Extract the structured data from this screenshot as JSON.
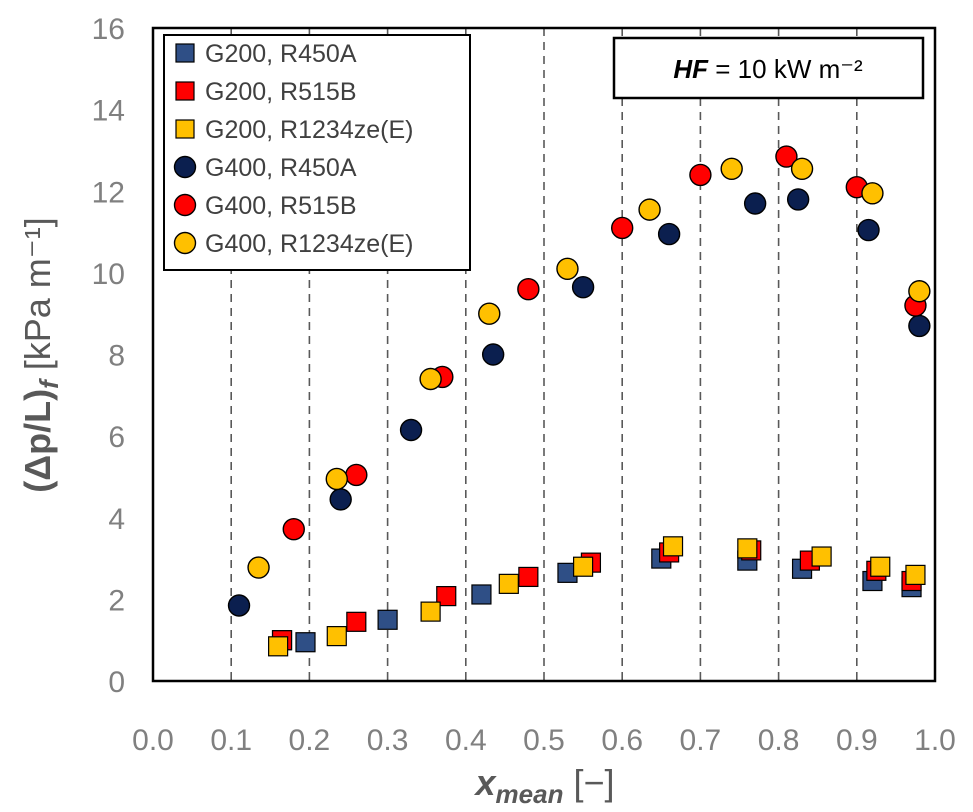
{
  "colors": {
    "R450A": "#2F4F86",
    "R515B": "#FF0000",
    "R1234zeE": "#FFC000",
    "G400_R450A": "#0B1F4F",
    "marker_stroke": "#000000",
    "grid": "#595959",
    "axis_text": "#808080",
    "title_text": "#595959"
  },
  "chart_data": {
    "type": "scatter",
    "xlim": [
      0.0,
      1.0
    ],
    "ylim": [
      0,
      16
    ],
    "xticks": [
      0.0,
      0.1,
      0.2,
      0.3,
      0.4,
      0.5,
      0.6,
      0.7,
      0.8,
      0.9,
      1.0
    ],
    "yticks": [
      0,
      2,
      4,
      6,
      8,
      10,
      12,
      14,
      16
    ],
    "xtick_labels": [
      "0.0",
      "0.1",
      "0.2",
      "0.3",
      "0.4",
      "0.5",
      "0.6",
      "0.7",
      "0.8",
      "0.9",
      "1.0"
    ],
    "ytick_labels": [
      "0",
      "2",
      "4",
      "6",
      "8",
      "10",
      "12",
      "14",
      "16"
    ],
    "grid": "dashed-vertical",
    "xlabel": {
      "main": "x",
      "sub": "mean",
      "suffix": " [−]"
    },
    "ylabel": {
      "main": "(Δp/L)",
      "sub": "f",
      "suffix": " [kPa m⁻¹]"
    },
    "annotation": {
      "bold": "HF",
      "rest": " = 10 kW m⁻²"
    },
    "legend_position": "top-left",
    "series": [
      {
        "name": "G200, R450A",
        "marker": "square",
        "color": "#2F4F86",
        "points": [
          [
            0.165,
            1.0
          ],
          [
            0.195,
            0.95
          ],
          [
            0.3,
            1.5
          ],
          [
            0.42,
            2.12
          ],
          [
            0.53,
            2.65
          ],
          [
            0.65,
            3.0
          ],
          [
            0.76,
            2.95
          ],
          [
            0.83,
            2.75
          ],
          [
            0.92,
            2.45
          ],
          [
            0.97,
            2.3
          ]
        ]
      },
      {
        "name": "G200, R515B",
        "marker": "square",
        "color": "#FF0000",
        "points": [
          [
            0.165,
            1.0
          ],
          [
            0.26,
            1.45
          ],
          [
            0.375,
            2.08
          ],
          [
            0.48,
            2.55
          ],
          [
            0.56,
            2.9
          ],
          [
            0.66,
            3.15
          ],
          [
            0.765,
            3.2
          ],
          [
            0.84,
            2.95
          ],
          [
            0.925,
            2.7
          ],
          [
            0.97,
            2.45
          ]
        ]
      },
      {
        "name": "G200, R1234ze(E)",
        "marker": "square",
        "color": "#FFC000",
        "points": [
          [
            0.16,
            0.85
          ],
          [
            0.235,
            1.1
          ],
          [
            0.355,
            1.7
          ],
          [
            0.455,
            2.38
          ],
          [
            0.55,
            2.8
          ],
          [
            0.665,
            3.3
          ],
          [
            0.76,
            3.25
          ],
          [
            0.855,
            3.05
          ],
          [
            0.93,
            2.8
          ],
          [
            0.975,
            2.6
          ]
        ]
      },
      {
        "name": "G400, R450A",
        "marker": "circle",
        "color": "#0B1F4F",
        "points": [
          [
            0.11,
            1.85
          ],
          [
            0.24,
            4.45
          ],
          [
            0.33,
            6.15
          ],
          [
            0.435,
            8.0
          ],
          [
            0.55,
            9.65
          ],
          [
            0.66,
            10.95
          ],
          [
            0.77,
            11.7
          ],
          [
            0.825,
            11.8
          ],
          [
            0.915,
            11.05
          ],
          [
            0.98,
            8.7
          ]
        ]
      },
      {
        "name": "G400, R515B",
        "marker": "circle",
        "color": "#FF0000",
        "points": [
          [
            0.18,
            3.72
          ],
          [
            0.26,
            5.05
          ],
          [
            0.37,
            7.45
          ],
          [
            0.48,
            9.6
          ],
          [
            0.6,
            11.1
          ],
          [
            0.7,
            12.4
          ],
          [
            0.81,
            12.85
          ],
          [
            0.9,
            12.1
          ],
          [
            0.975,
            9.2
          ]
        ]
      },
      {
        "name": "G400, R1234ze(E)",
        "marker": "circle",
        "color": "#FFC000",
        "points": [
          [
            0.135,
            2.78
          ],
          [
            0.235,
            4.95
          ],
          [
            0.355,
            7.4
          ],
          [
            0.43,
            9.0
          ],
          [
            0.53,
            10.1
          ],
          [
            0.635,
            11.55
          ],
          [
            0.74,
            12.55
          ],
          [
            0.83,
            12.55
          ],
          [
            0.92,
            11.95
          ],
          [
            0.98,
            9.55
          ]
        ]
      }
    ]
  }
}
